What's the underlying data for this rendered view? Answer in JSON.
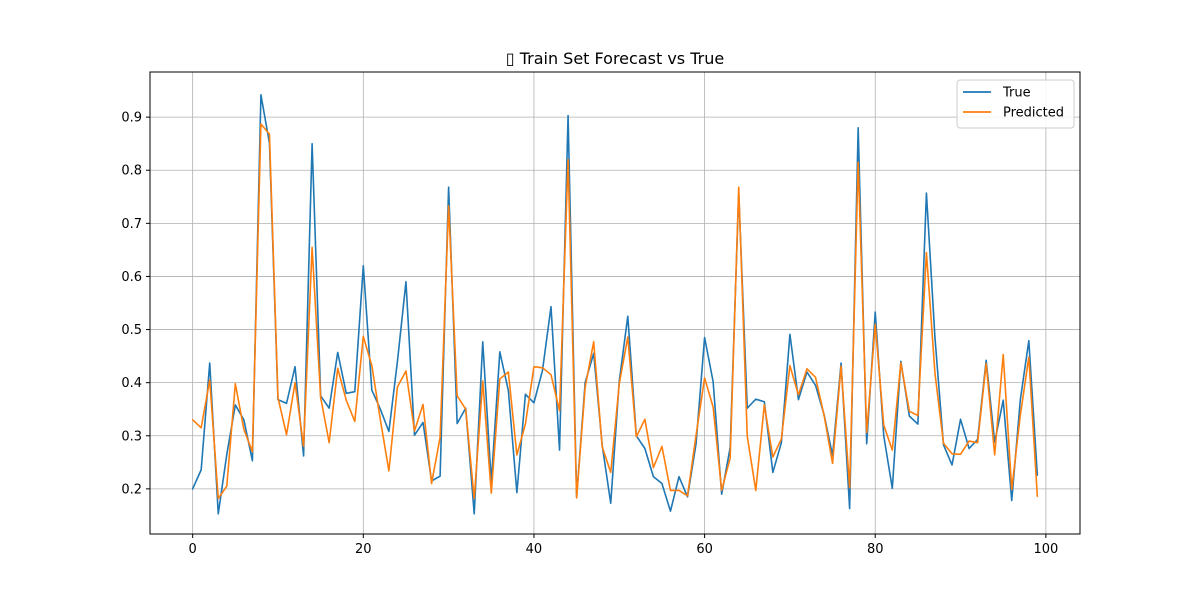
{
  "chart_data": {
    "type": "line",
    "title": "▯ Train Set Forecast vs True",
    "xlabel": "",
    "ylabel": "",
    "xlim": [
      -5.0,
      104.0
    ],
    "ylim": [
      0.115,
      0.985
    ],
    "xticks": [
      0,
      20,
      40,
      60,
      80,
      100
    ],
    "yticks": [
      0.2,
      0.3,
      0.4,
      0.5,
      0.6,
      0.7,
      0.8,
      0.9
    ],
    "grid": true,
    "legend_position": "top-right",
    "x": [
      0,
      1,
      2,
      3,
      4,
      5,
      6,
      7,
      8,
      9,
      10,
      11,
      12,
      13,
      14,
      15,
      16,
      17,
      18,
      19,
      20,
      21,
      22,
      23,
      24,
      25,
      26,
      27,
      28,
      29,
      30,
      31,
      32,
      33,
      34,
      35,
      36,
      37,
      38,
      39,
      40,
      41,
      42,
      43,
      44,
      45,
      46,
      47,
      48,
      49,
      50,
      51,
      52,
      53,
      54,
      55,
      56,
      57,
      58,
      59,
      60,
      61,
      62,
      63,
      64,
      65,
      66,
      67,
      68,
      69,
      70,
      71,
      72,
      73,
      74,
      75,
      76,
      77,
      78,
      79,
      80,
      81,
      82,
      83,
      84,
      85,
      86,
      87,
      88,
      89,
      90,
      91,
      92,
      93,
      94,
      95,
      96,
      97,
      98,
      99
    ],
    "series": [
      {
        "name": "True",
        "color": "#1f77b4",
        "values": [
          0.2,
          0.236,
          0.437,
          0.153,
          0.265,
          0.358,
          0.33,
          0.253,
          0.942,
          0.851,
          0.368,
          0.361,
          0.43,
          0.262,
          0.85,
          0.375,
          0.352,
          0.457,
          0.38,
          0.383,
          0.62,
          0.386,
          0.35,
          0.308,
          0.44,
          0.59,
          0.301,
          0.325,
          0.215,
          0.224,
          0.768,
          0.323,
          0.352,
          0.153,
          0.477,
          0.213,
          0.458,
          0.385,
          0.193,
          0.378,
          0.362,
          0.423,
          0.543,
          0.273,
          0.903,
          0.185,
          0.4,
          0.455,
          0.282,
          0.173,
          0.403,
          0.525,
          0.3,
          0.276,
          0.223,
          0.21,
          0.158,
          0.223,
          0.185,
          0.285,
          0.485,
          0.402,
          0.19,
          0.278,
          0.757,
          0.352,
          0.369,
          0.364,
          0.231,
          0.287,
          0.491,
          0.368,
          0.42,
          0.395,
          0.34,
          0.263,
          0.437,
          0.163,
          0.88,
          0.285,
          0.533,
          0.3,
          0.201,
          0.44,
          0.337,
          0.322,
          0.757,
          0.485,
          0.283,
          0.245,
          0.331,
          0.276,
          0.293,
          0.442,
          0.288,
          0.367,
          0.178,
          0.367,
          0.479,
          0.226
        ]
      },
      {
        "name": "Predicted",
        "color": "#ff7f0e",
        "values": [
          0.33,
          0.315,
          0.405,
          0.182,
          0.205,
          0.398,
          0.312,
          0.27,
          0.887,
          0.868,
          0.372,
          0.302,
          0.4,
          0.28,
          0.655,
          0.372,
          0.287,
          0.427,
          0.367,
          0.327,
          0.487,
          0.432,
          0.33,
          0.234,
          0.392,
          0.422,
          0.309,
          0.359,
          0.21,
          0.297,
          0.733,
          0.375,
          0.35,
          0.182,
          0.403,
          0.192,
          0.407,
          0.42,
          0.264,
          0.322,
          0.43,
          0.428,
          0.415,
          0.347,
          0.82,
          0.183,
          0.391,
          0.477,
          0.279,
          0.231,
          0.398,
          0.486,
          0.298,
          0.331,
          0.24,
          0.28,
          0.197,
          0.197,
          0.187,
          0.301,
          0.409,
          0.354,
          0.197,
          0.258,
          0.768,
          0.299,
          0.197,
          0.358,
          0.26,
          0.294,
          0.432,
          0.377,
          0.426,
          0.41,
          0.339,
          0.248,
          0.431,
          0.202,
          0.815,
          0.306,
          0.51,
          0.32,
          0.273,
          0.437,
          0.346,
          0.338,
          0.645,
          0.418,
          0.286,
          0.266,
          0.265,
          0.29,
          0.287,
          0.436,
          0.264,
          0.453,
          0.199,
          0.338,
          0.448,
          0.186
        ]
      }
    ]
  }
}
